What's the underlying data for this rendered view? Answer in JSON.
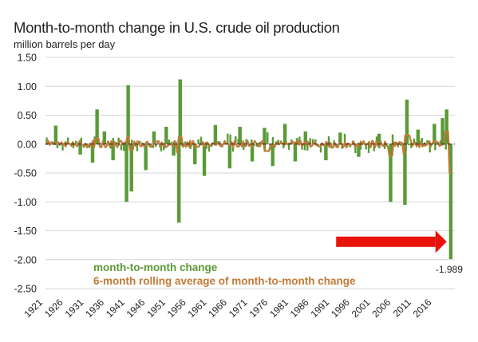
{
  "chart_data": {
    "type": "bar",
    "title": "Month-to-month change in U.S. crude oil production",
    "subtitle": "million barrels per day",
    "ylim": [
      -2.5,
      1.5
    ],
    "yticks": [
      "1.50",
      "1.00",
      "0.50",
      "0.00",
      "-0.50",
      "-1.00",
      "-1.50",
      "-2.00",
      "-2.50"
    ],
    "x_range": [
      1921,
      2021
    ],
    "xticks": [
      "1921",
      "1926",
      "1931",
      "1936",
      "1941",
      "1946",
      "1951",
      "1956",
      "1961",
      "1966",
      "1971",
      "1976",
      "1981",
      "1986",
      "1991",
      "1996",
      "2001",
      "2006",
      "2011",
      "2016"
    ],
    "grid": "horizontal",
    "legend_placement": "bottom-left",
    "series": [
      {
        "name": "month-to-month change",
        "color": "#5a9a36",
        "style": "bars",
        "points": [
          {
            "x": 1923.5,
            "y": 0.32
          },
          {
            "x": 1929.5,
            "y": -0.18
          },
          {
            "x": 1932.5,
            "y": -0.32
          },
          {
            "x": 1933.6,
            "y": 0.6
          },
          {
            "x": 1935.4,
            "y": 0.22
          },
          {
            "x": 1937.5,
            "y": -0.28
          },
          {
            "x": 1940.8,
            "y": -1.0
          },
          {
            "x": 1941.2,
            "y": 1.02
          },
          {
            "x": 1942.0,
            "y": -0.82
          },
          {
            "x": 1945.5,
            "y": -0.45
          },
          {
            "x": 1947.5,
            "y": 0.22
          },
          {
            "x": 1950.5,
            "y": 0.3
          },
          {
            "x": 1952.3,
            "y": -0.2
          },
          {
            "x": 1953.6,
            "y": -1.36
          },
          {
            "x": 1953.9,
            "y": 1.12
          },
          {
            "x": 1957.5,
            "y": -0.35
          },
          {
            "x": 1959.8,
            "y": -0.55
          },
          {
            "x": 1962.5,
            "y": 0.33
          },
          {
            "x": 1966.0,
            "y": -0.42
          },
          {
            "x": 1968.5,
            "y": 0.3
          },
          {
            "x": 1971.5,
            "y": -0.3
          },
          {
            "x": 1974.5,
            "y": 0.28
          },
          {
            "x": 1976.5,
            "y": -0.38
          },
          {
            "x": 1979.5,
            "y": 0.35
          },
          {
            "x": 1982.0,
            "y": -0.3
          },
          {
            "x": 1984.5,
            "y": 0.22
          },
          {
            "x": 1989.5,
            "y": -0.28
          },
          {
            "x": 1993.0,
            "y": 0.2
          },
          {
            "x": 1997.5,
            "y": -0.22
          },
          {
            "x": 2002.5,
            "y": 0.18
          },
          {
            "x": 2005.3,
            "y": -1.0
          },
          {
            "x": 2008.8,
            "y": -1.05
          },
          {
            "x": 2009.3,
            "y": 0.77
          },
          {
            "x": 2012.0,
            "y": 0.25
          },
          {
            "x": 2016.0,
            "y": 0.35
          },
          {
            "x": 2018.0,
            "y": 0.45
          },
          {
            "x": 2019.0,
            "y": 0.6
          },
          {
            "x": 2020.0,
            "y": -1.989
          }
        ]
      },
      {
        "name": "6-month rolling average of month-to-month change",
        "color": "#c07a35",
        "style": "line",
        "points": [
          {
            "x": 1921,
            "y": 0.0
          },
          {
            "x": 1933.6,
            "y": 0.1
          },
          {
            "x": 1941.2,
            "y": 0.12
          },
          {
            "x": 1942.0,
            "y": -0.1
          },
          {
            "x": 1953.6,
            "y": -0.15
          },
          {
            "x": 1953.9,
            "y": 0.12
          },
          {
            "x": 1975,
            "y": -0.12
          },
          {
            "x": 2005.3,
            "y": -0.2
          },
          {
            "x": 2008.8,
            "y": -0.18
          },
          {
            "x": 2009.3,
            "y": 0.15
          },
          {
            "x": 2019.0,
            "y": 0.22
          },
          {
            "x": 2020.2,
            "y": -0.5
          }
        ]
      }
    ],
    "annotations": [
      {
        "text": "-1.989",
        "x": 2020.0,
        "y": -1.989
      }
    ],
    "arrow": {
      "color": "#e8140c",
      "direction": "right",
      "x_from": 1992,
      "x_to": 2019,
      "y": -1.69
    }
  }
}
